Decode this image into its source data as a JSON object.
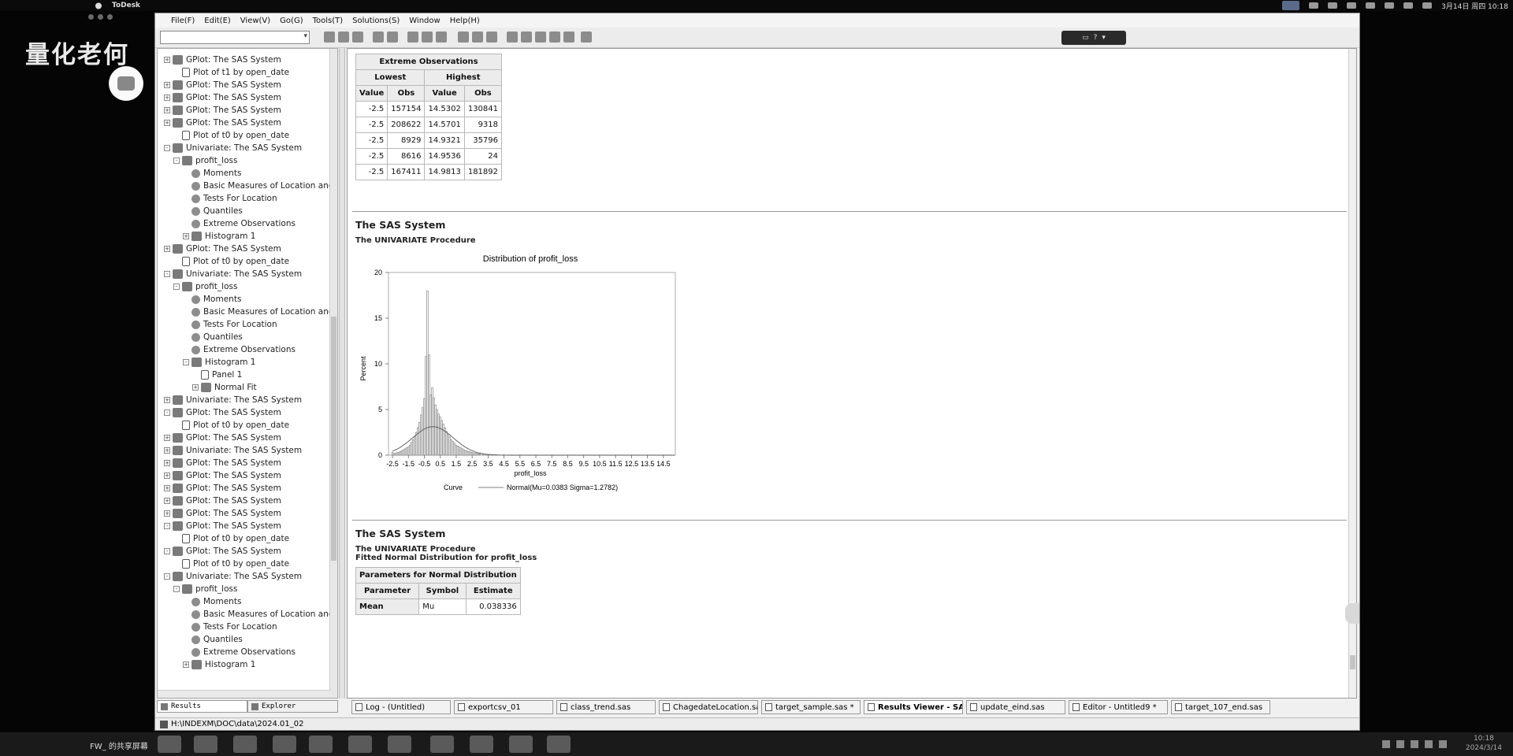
{
  "mac_bar": {
    "app_name": "ToDesk",
    "date_time": "3月14日 周四 10:18"
  },
  "watermark": "量化老何",
  "sas": {
    "menu": [
      "File(F)",
      "Edit(E)",
      "View(V)",
      "Go(G)",
      "Tools(T)",
      "Solutions(S)",
      "Window",
      "Help(H)"
    ],
    "command_value": ""
  },
  "tree": {
    "nodes": [
      {
        "label": "GPlot:  The SAS System",
        "level": 0,
        "type": "folder",
        "pm": "+"
      },
      {
        "label": "Plot of t1 by open_date",
        "level": 1,
        "type": "doc",
        "pm": ""
      },
      {
        "label": "GPlot:  The SAS System",
        "level": 0,
        "type": "folder",
        "pm": "+"
      },
      {
        "label": "GPlot:  The SAS System",
        "level": 0,
        "type": "folder",
        "pm": "+"
      },
      {
        "label": "GPlot:  The SAS System",
        "level": 0,
        "type": "folder",
        "pm": "+"
      },
      {
        "label": "GPlot:  The SAS System",
        "level": 0,
        "type": "folder",
        "pm": "+"
      },
      {
        "label": "Plot of t0 by open_date",
        "level": 1,
        "type": "doc",
        "pm": ""
      },
      {
        "label": "Univariate:  The SAS System",
        "level": 0,
        "type": "folder",
        "pm": "-"
      },
      {
        "label": "profit_loss",
        "level": 1,
        "type": "folder",
        "pm": "-"
      },
      {
        "label": "Moments",
        "level": 2,
        "type": "gear",
        "pm": ""
      },
      {
        "label": "Basic Measures of Location and",
        "level": 2,
        "type": "gear",
        "pm": ""
      },
      {
        "label": "Tests For Location",
        "level": 2,
        "type": "gear",
        "pm": ""
      },
      {
        "label": "Quantiles",
        "level": 2,
        "type": "gear",
        "pm": ""
      },
      {
        "label": "Extreme Observations",
        "level": 2,
        "type": "gear",
        "pm": ""
      },
      {
        "label": "Histogram 1",
        "level": 2,
        "type": "folder",
        "pm": "+"
      },
      {
        "label": "GPlot:  The SAS System",
        "level": 0,
        "type": "folder",
        "pm": "+"
      },
      {
        "label": "Plot of t0 by open_date",
        "level": 1,
        "type": "doc",
        "pm": ""
      },
      {
        "label": "Univariate:  The SAS System",
        "level": 0,
        "type": "folder",
        "pm": "-"
      },
      {
        "label": "profit_loss",
        "level": 1,
        "type": "folder",
        "pm": "-"
      },
      {
        "label": "Moments",
        "level": 2,
        "type": "gear",
        "pm": ""
      },
      {
        "label": "Basic Measures of Location and",
        "level": 2,
        "type": "gear",
        "pm": ""
      },
      {
        "label": "Tests For Location",
        "level": 2,
        "type": "gear",
        "pm": ""
      },
      {
        "label": "Quantiles",
        "level": 2,
        "type": "gear",
        "pm": ""
      },
      {
        "label": "Extreme Observations",
        "level": 2,
        "type": "gear",
        "pm": ""
      },
      {
        "label": "Histogram 1",
        "level": 2,
        "type": "folder",
        "pm": "-"
      },
      {
        "label": "Panel 1",
        "level": 3,
        "type": "doc",
        "pm": ""
      },
      {
        "label": "Normal Fit",
        "level": 3,
        "type": "folder",
        "pm": "+"
      },
      {
        "label": "Univariate:  The SAS System",
        "level": 0,
        "type": "folder",
        "pm": "+"
      },
      {
        "label": "GPlot:  The SAS System",
        "level": 0,
        "type": "folder",
        "pm": "-"
      },
      {
        "label": "Plot of t0 by open_date",
        "level": 1,
        "type": "doc",
        "pm": ""
      },
      {
        "label": "GPlot:  The SAS System",
        "level": 0,
        "type": "folder",
        "pm": "+"
      },
      {
        "label": "Univariate:  The SAS System",
        "level": 0,
        "type": "folder",
        "pm": "+"
      },
      {
        "label": "GPlot:  The SAS System",
        "level": 0,
        "type": "folder",
        "pm": "+"
      },
      {
        "label": "GPlot:  The SAS System",
        "level": 0,
        "type": "folder",
        "pm": "+"
      },
      {
        "label": "GPlot:  The SAS System",
        "level": 0,
        "type": "folder",
        "pm": "+"
      },
      {
        "label": "GPlot:  The SAS System",
        "level": 0,
        "type": "folder",
        "pm": "+"
      },
      {
        "label": "GPlot:  The SAS System",
        "level": 0,
        "type": "folder",
        "pm": "+"
      },
      {
        "label": "GPlot:  The SAS System",
        "level": 0,
        "type": "folder",
        "pm": "-"
      },
      {
        "label": "Plot of t0 by open_date",
        "level": 1,
        "type": "doc",
        "pm": ""
      },
      {
        "label": "GPlot:  The SAS System",
        "level": 0,
        "type": "folder",
        "pm": "-"
      },
      {
        "label": "Plot of t0 by open_date",
        "level": 1,
        "type": "doc",
        "pm": ""
      },
      {
        "label": "Univariate:  The SAS System",
        "level": 0,
        "type": "folder",
        "pm": "-"
      },
      {
        "label": "profit_loss",
        "level": 1,
        "type": "folder",
        "pm": "-"
      },
      {
        "label": "Moments",
        "level": 2,
        "type": "gear",
        "pm": ""
      },
      {
        "label": "Basic Measures of Location and",
        "level": 2,
        "type": "gear",
        "pm": ""
      },
      {
        "label": "Tests For Location",
        "level": 2,
        "type": "gear",
        "pm": ""
      },
      {
        "label": "Quantiles",
        "level": 2,
        "type": "gear",
        "pm": ""
      },
      {
        "label": "Extreme Observations",
        "level": 2,
        "type": "gear",
        "pm": ""
      },
      {
        "label": "Histogram 1",
        "level": 2,
        "type": "folder",
        "pm": "+"
      }
    ],
    "tabs": [
      "Results",
      "Explorer"
    ]
  },
  "extreme": {
    "title": "Extreme Observations",
    "group_lowest": "Lowest",
    "group_highest": "Highest",
    "col_value": "Value",
    "col_obs": "Obs",
    "rows": [
      [
        "-2.5",
        "157154",
        "14.5302",
        "130841"
      ],
      [
        "-2.5",
        "208622",
        "14.5701",
        "9318"
      ],
      [
        "-2.5",
        "8929",
        "14.9321",
        "35796"
      ],
      [
        "-2.5",
        "8616",
        "14.9536",
        "24"
      ],
      [
        "-2.5",
        "167411",
        "14.9813",
        "181892"
      ]
    ]
  },
  "section1": {
    "title": "The SAS System",
    "proc": "The UNIVARIATE Procedure"
  },
  "section2": {
    "title": "The SAS System",
    "proc": "The UNIVARIATE Procedure",
    "sub": "Fitted Normal Distribution for profit_loss"
  },
  "params": {
    "title": "Parameters for Normal Distribution",
    "headers": [
      "Parameter",
      "Symbol",
      "Estimate"
    ],
    "rows": [
      [
        "Mean",
        "Mu",
        "0.038336"
      ]
    ]
  },
  "chart_data": {
    "type": "bar",
    "title": "Distribution of profit_loss",
    "xlabel": "profit_loss",
    "ylabel": "Percent",
    "xlim": [
      -2.75,
      15.25
    ],
    "ylim": [
      0,
      20
    ],
    "yticks": [
      0,
      5,
      10,
      15,
      20
    ],
    "xticks": [
      "-2.5",
      "-1.5",
      "-0.5",
      "0.5",
      "1.5",
      "2.5",
      "3.5",
      "4.5",
      "5.5",
      "6.5",
      "7.5",
      "8.5",
      "9.5",
      "10.5",
      "11.5",
      "12.5",
      "13.5",
      "14.5"
    ],
    "bin_width": 0.1,
    "bins": [
      [
        -2.5,
        0.3
      ],
      [
        -2.4,
        0.2
      ],
      [
        -2.3,
        0.2
      ],
      [
        -2.2,
        0.3
      ],
      [
        -2.1,
        0.3
      ],
      [
        -2.0,
        0.4
      ],
      [
        -1.9,
        0.5
      ],
      [
        -1.8,
        0.6
      ],
      [
        -1.7,
        0.7
      ],
      [
        -1.6,
        0.8
      ],
      [
        -1.5,
        0.9
      ],
      [
        -1.4,
        1.1
      ],
      [
        -1.3,
        1.4
      ],
      [
        -1.2,
        1.7
      ],
      [
        -1.1,
        2.0
      ],
      [
        -1.0,
        2.5
      ],
      [
        -0.9,
        3.0
      ],
      [
        -0.8,
        3.6
      ],
      [
        -0.7,
        4.4
      ],
      [
        -0.6,
        5.2
      ],
      [
        -0.5,
        6.2
      ],
      [
        -0.4,
        10.8
      ],
      [
        -0.3,
        18.0
      ],
      [
        -0.2,
        11.0
      ],
      [
        -0.1,
        6.6
      ],
      [
        0.0,
        7.4
      ],
      [
        0.1,
        6.3
      ],
      [
        0.2,
        5.5
      ],
      [
        0.3,
        5.0
      ],
      [
        0.4,
        4.5
      ],
      [
        0.5,
        4.2
      ],
      [
        0.6,
        3.8
      ],
      [
        0.7,
        3.4
      ],
      [
        0.8,
        3.0
      ],
      [
        0.9,
        2.6
      ],
      [
        1.0,
        2.3
      ],
      [
        1.1,
        2.0
      ],
      [
        1.2,
        1.7
      ],
      [
        1.3,
        1.5
      ],
      [
        1.4,
        1.3
      ],
      [
        1.5,
        1.1
      ],
      [
        1.6,
        1.0
      ],
      [
        1.7,
        0.9
      ],
      [
        1.8,
        0.8
      ],
      [
        1.9,
        0.7
      ],
      [
        2.0,
        0.6
      ],
      [
        2.1,
        0.5
      ],
      [
        2.2,
        0.45
      ],
      [
        2.3,
        0.4
      ],
      [
        2.4,
        0.35
      ],
      [
        2.5,
        0.3
      ],
      [
        2.6,
        0.25
      ],
      [
        2.7,
        0.2
      ],
      [
        2.8,
        0.2
      ],
      [
        2.9,
        0.15
      ],
      [
        3.0,
        0.15
      ],
      [
        3.2,
        0.12
      ],
      [
        3.4,
        0.1
      ],
      [
        3.6,
        0.08
      ],
      [
        3.8,
        0.06
      ],
      [
        4.0,
        0.05
      ],
      [
        4.5,
        0.04
      ],
      [
        5.0,
        0.03
      ],
      [
        5.5,
        0.02
      ],
      [
        6.0,
        0.02
      ]
    ],
    "normal_fit": {
      "mu": 0.0383,
      "sigma": 1.2782
    },
    "legend_label": "Curve",
    "legend_entry": "Normal(Mu=0.0383 Sigma=1.2782)"
  },
  "wintabs": [
    {
      "label": "Log - (Untitled)",
      "active": false
    },
    {
      "label": "exportcsv_01",
      "active": false
    },
    {
      "label": "class_trend.sas",
      "active": false
    },
    {
      "label": "ChagedateLocation.sas",
      "active": false
    },
    {
      "label": "target_sample.sas *",
      "active": false
    },
    {
      "label": "Results Viewer - SA...",
      "active": true
    },
    {
      "label": "update_eind.sas",
      "active": false
    },
    {
      "label": "Editor - Untitled9 *",
      "active": false
    },
    {
      "label": "target_107_end.sas",
      "active": false
    }
  ],
  "status_path": "H:\\INDEXM\\DOC\\data\\2024.01_02",
  "taskbar": {
    "share_label": "FW_ 的共享屏幕",
    "clock_time": "10:18",
    "clock_date": "2024/3/14"
  }
}
